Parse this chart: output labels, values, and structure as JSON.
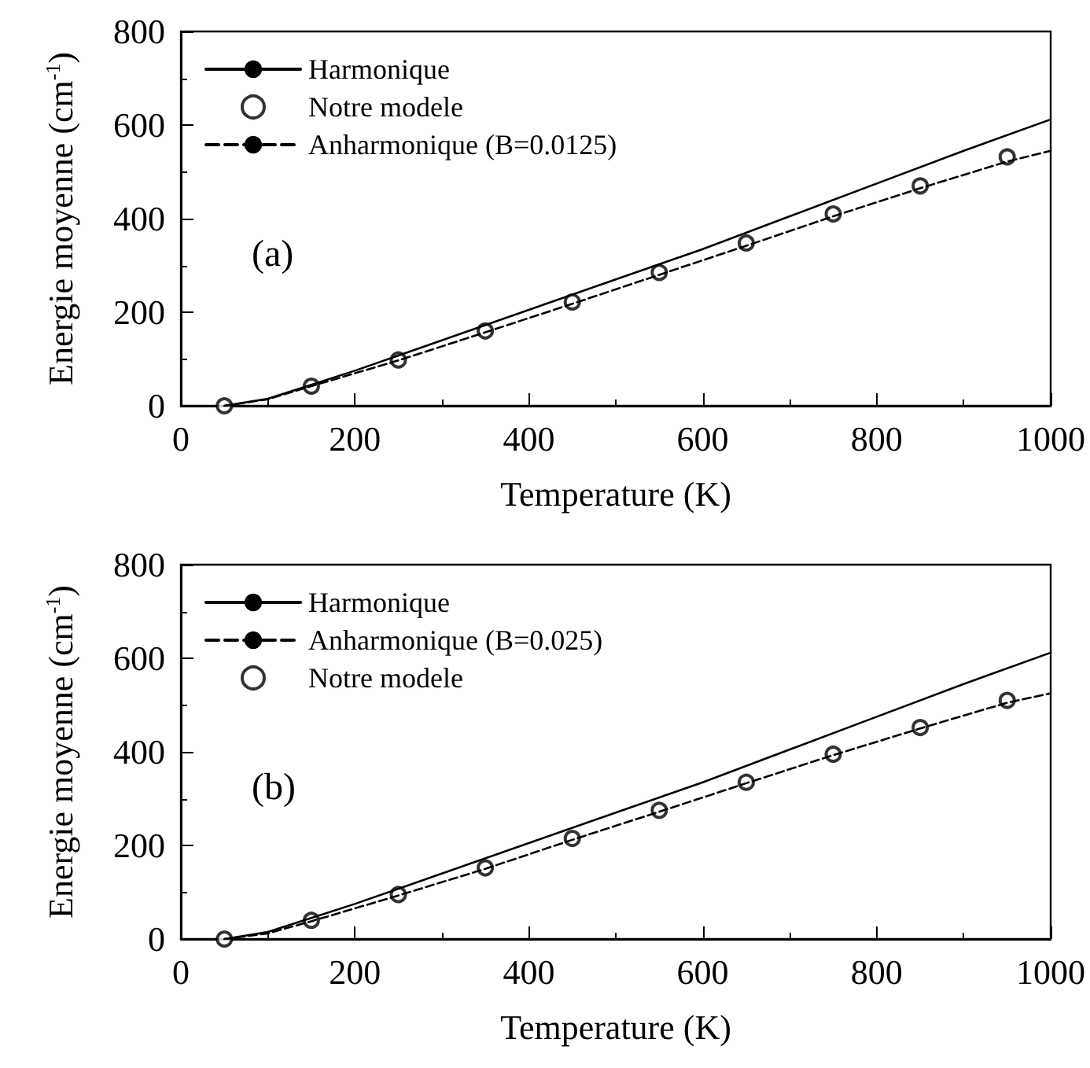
{
  "chart_data": [
    {
      "type": "line",
      "xlabel": "Temperature (K)",
      "ylabel": "Energie moyenne (cm$^{-1}$)",
      "xlim": [
        0,
        1000
      ],
      "xticks": [
        0,
        200,
        400,
        600,
        800,
        1000
      ],
      "ylim": [
        0,
        800
      ],
      "yticks": [
        0,
        200,
        400,
        600,
        800
      ],
      "legend": "top left",
      "grid": false,
      "annotations": [
        "(a)"
      ],
      "series": [
        {
          "name": "Harmonique",
          "color": "#000000",
          "line_style": "solid",
          "marker": "none",
          "x": [
            50,
            100,
            150,
            200,
            300,
            400,
            500,
            600,
            700,
            800,
            900,
            1000
          ],
          "values": [
            0,
            15,
            45,
            75,
            140,
            205,
            270,
            335,
            405,
            475,
            545,
            612
          ]
        },
        {
          "name": "Notre modele",
          "type": "scatter",
          "color": "#000000",
          "marker": "circle",
          "x": [
            50,
            150,
            250,
            350,
            450,
            550,
            650,
            750,
            850,
            950
          ],
          "values": [
            0,
            42,
            98,
            160,
            222,
            285,
            348,
            410,
            470,
            532
          ]
        },
        {
          "name": "Anharmonique (B=0.0125)",
          "color": "#000000",
          "line_style": "dashed",
          "marker": "none",
          "x": [
            50,
            100,
            150,
            250,
            350,
            450,
            550,
            650,
            750,
            850,
            950,
            1000
          ],
          "values": [
            0,
            14,
            42,
            97,
            157,
            218,
            280,
            342,
            405,
            465,
            522,
            545
          ]
        }
      ]
    },
    {
      "type": "line",
      "xlabel": "Temperature (K)",
      "ylabel": "Energie moyenne (cm$^{-1}$)",
      "xlim": [
        0,
        1000
      ],
      "xticks": [
        0,
        200,
        400,
        600,
        800,
        1000
      ],
      "ylim": [
        0,
        800
      ],
      "yticks": [
        0,
        200,
        400,
        600,
        800
      ],
      "legend": "top left",
      "grid": false,
      "annotations": [
        "(b)"
      ],
      "series": [
        {
          "name": "Harmonique",
          "color": "#000000",
          "line_style": "solid",
          "marker": "none",
          "x": [
            50,
            100,
            150,
            200,
            300,
            400,
            500,
            600,
            700,
            800,
            900,
            1000
          ],
          "values": [
            0,
            15,
            45,
            75,
            140,
            205,
            270,
            335,
            405,
            475,
            545,
            612
          ]
        },
        {
          "name": "Anharmonique (B=0.025)",
          "color": "#000000",
          "line_style": "dashed",
          "marker": "none",
          "x": [
            50,
            100,
            150,
            250,
            350,
            450,
            550,
            650,
            750,
            850,
            950,
            1000
          ],
          "values": [
            0,
            12,
            38,
            93,
            150,
            212,
            272,
            333,
            393,
            450,
            505,
            525
          ]
        },
        {
          "name": "Notre modele",
          "type": "scatter",
          "color": "#000000",
          "marker": "circle",
          "x": [
            50,
            150,
            250,
            350,
            450,
            550,
            650,
            750,
            850,
            950
          ],
          "values": [
            0,
            40,
            95,
            152,
            215,
            275,
            335,
            395,
            452,
            510
          ]
        }
      ]
    }
  ]
}
